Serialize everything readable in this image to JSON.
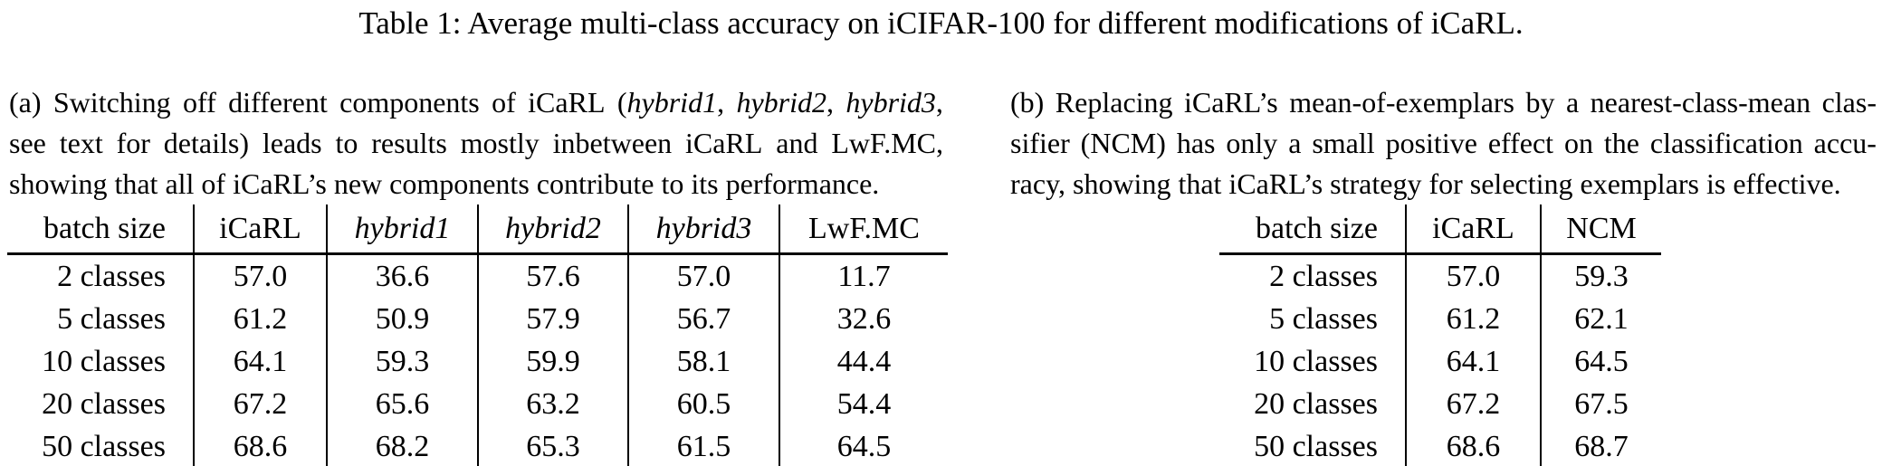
{
  "title": "Table 1: Average multi-class accuracy on iCIFAR-100 for different modifications of iCaRL.",
  "colors": {
    "text": "#000000",
    "background": "#ffffff",
    "rule": "#000000"
  },
  "panel_a": {
    "caption": {
      "lines": [
        {
          "justify": true,
          "segments": [
            {
              "t": "(a) Switching off different components of iCaRL (",
              "i": false
            },
            {
              "t": "hybrid1",
              "i": true
            },
            {
              "t": ", ",
              "i": false
            },
            {
              "t": "hybrid2",
              "i": true
            },
            {
              "t": ", ",
              "i": false
            },
            {
              "t": "hybrid3",
              "i": true
            },
            {
              "t": ",",
              "i": false
            }
          ]
        },
        {
          "justify": true,
          "segments": [
            {
              "t": "see text for details) leads to results mostly inbetween iCaRL and LwF.MC,",
              "i": false
            }
          ]
        },
        {
          "justify": false,
          "segments": [
            {
              "t": "showing that all of iCaRL’s new components contribute to its performance.",
              "i": false
            }
          ]
        }
      ]
    },
    "table": {
      "headers": [
        {
          "t": "batch size",
          "i": false
        },
        {
          "t": "iCaRL",
          "i": false
        },
        {
          "t": "hybrid1",
          "i": true
        },
        {
          "t": "hybrid2",
          "i": true
        },
        {
          "t": "hybrid3",
          "i": true
        },
        {
          "t": "LwF.MC",
          "i": false
        }
      ],
      "rows": [
        [
          "2 classes",
          "57.0",
          "36.6",
          "57.6",
          "57.0",
          "11.7"
        ],
        [
          "5 classes",
          "61.2",
          "50.9",
          "57.9",
          "56.7",
          "32.6"
        ],
        [
          "10 classes",
          "64.1",
          "59.3",
          "59.9",
          "58.1",
          "44.4"
        ],
        [
          "20 classes",
          "67.2",
          "65.6",
          "63.2",
          "60.5",
          "54.4"
        ],
        [
          "50 classes",
          "68.6",
          "68.2",
          "65.3",
          "61.5",
          "64.5"
        ]
      ]
    }
  },
  "panel_b": {
    "caption": {
      "lines": [
        {
          "justify": true,
          "segments": [
            {
              "t": "(b) Replacing iCaRL’s mean-of-exemplars by a nearest-class-mean clas-",
              "i": false
            }
          ]
        },
        {
          "justify": true,
          "segments": [
            {
              "t": "sifier (NCM) has only a small positive effect on the classification accu-",
              "i": false
            }
          ]
        },
        {
          "justify": false,
          "segments": [
            {
              "t": "racy, showing that iCaRL’s strategy for selecting exemplars is effective.",
              "i": false
            }
          ]
        }
      ]
    },
    "table": {
      "headers": [
        {
          "t": "batch size",
          "i": false
        },
        {
          "t": "iCaRL",
          "i": false
        },
        {
          "t": "NCM",
          "i": false
        }
      ],
      "rows": [
        [
          "2 classes",
          "57.0",
          "59.3"
        ],
        [
          "5 classes",
          "61.2",
          "62.1"
        ],
        [
          "10 classes",
          "64.1",
          "64.5"
        ],
        [
          "20 classes",
          "67.2",
          "67.5"
        ],
        [
          "50 classes",
          "68.6",
          "68.7"
        ]
      ]
    }
  }
}
